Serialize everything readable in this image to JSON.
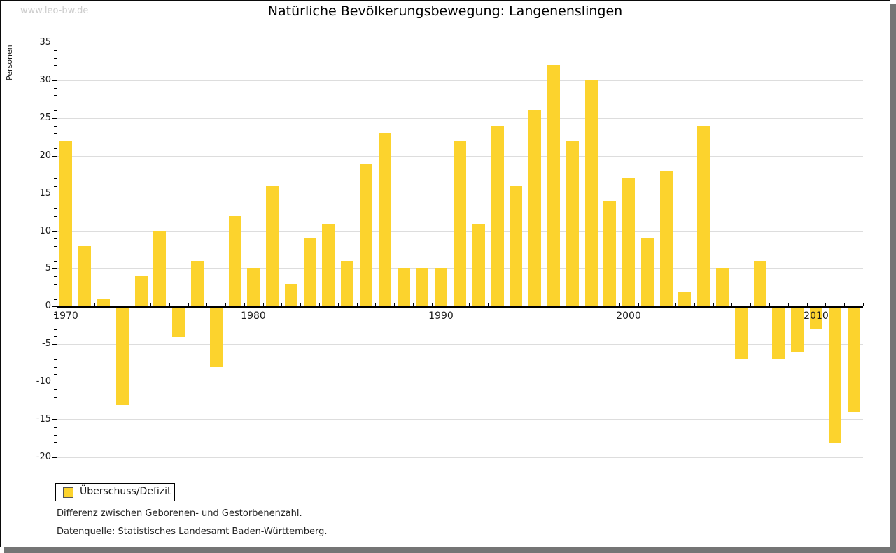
{
  "site": {
    "watermark": "www.leo-bw.de"
  },
  "chart_data": {
    "type": "bar",
    "title": "Natürliche Bevölkerungsbewegung: Langenenslingen",
    "xlabel": "",
    "ylabel": "Personen",
    "categories": [
      1970,
      1971,
      1972,
      1973,
      1974,
      1975,
      1976,
      1977,
      1978,
      1979,
      1980,
      1981,
      1982,
      1983,
      1984,
      1985,
      1986,
      1987,
      1988,
      1989,
      1990,
      1991,
      1992,
      1993,
      1994,
      1995,
      1996,
      1997,
      1998,
      1999,
      2000,
      2001,
      2002,
      2003,
      2004,
      2005,
      2006,
      2007,
      2008,
      2009,
      2010,
      2011,
      2012
    ],
    "values": [
      22,
      8,
      1,
      -13,
      4,
      10,
      -4,
      6,
      -8,
      12,
      5,
      16,
      3,
      9,
      11,
      6,
      19,
      23,
      5,
      5,
      5,
      22,
      11,
      24,
      16,
      26,
      32,
      22,
      30,
      14,
      17,
      9,
      18,
      2,
      24,
      5,
      -7,
      6,
      -7,
      -6,
      -3,
      -18,
      -14
    ],
    "ylim": [
      -20,
      35
    ],
    "ytick_step": 5,
    "ytick_labels": [
      "35",
      "30",
      "25",
      "20",
      "15",
      "10",
      "5",
      "0",
      "-5",
      "-10",
      "-15",
      "-20"
    ],
    "xtick_labels": [
      "1970",
      "1980",
      "1990",
      "2000",
      "2010"
    ],
    "grid": true,
    "legend_position": "bottom-left",
    "legend": [
      "Überschuss/Defizit"
    ],
    "bar_color": "#fcd32d"
  },
  "footnotes": [
    "Differenz zwischen Geborenen- und Gestorbenenzahl.",
    "Datenquelle: Statistisches Landesamt Baden-Württemberg."
  ],
  "colors": {
    "bar": "#fcd32d",
    "grid": "#dddddd",
    "axis": "#000000",
    "watermark": "#cccccc",
    "shadow": "#757575"
  }
}
